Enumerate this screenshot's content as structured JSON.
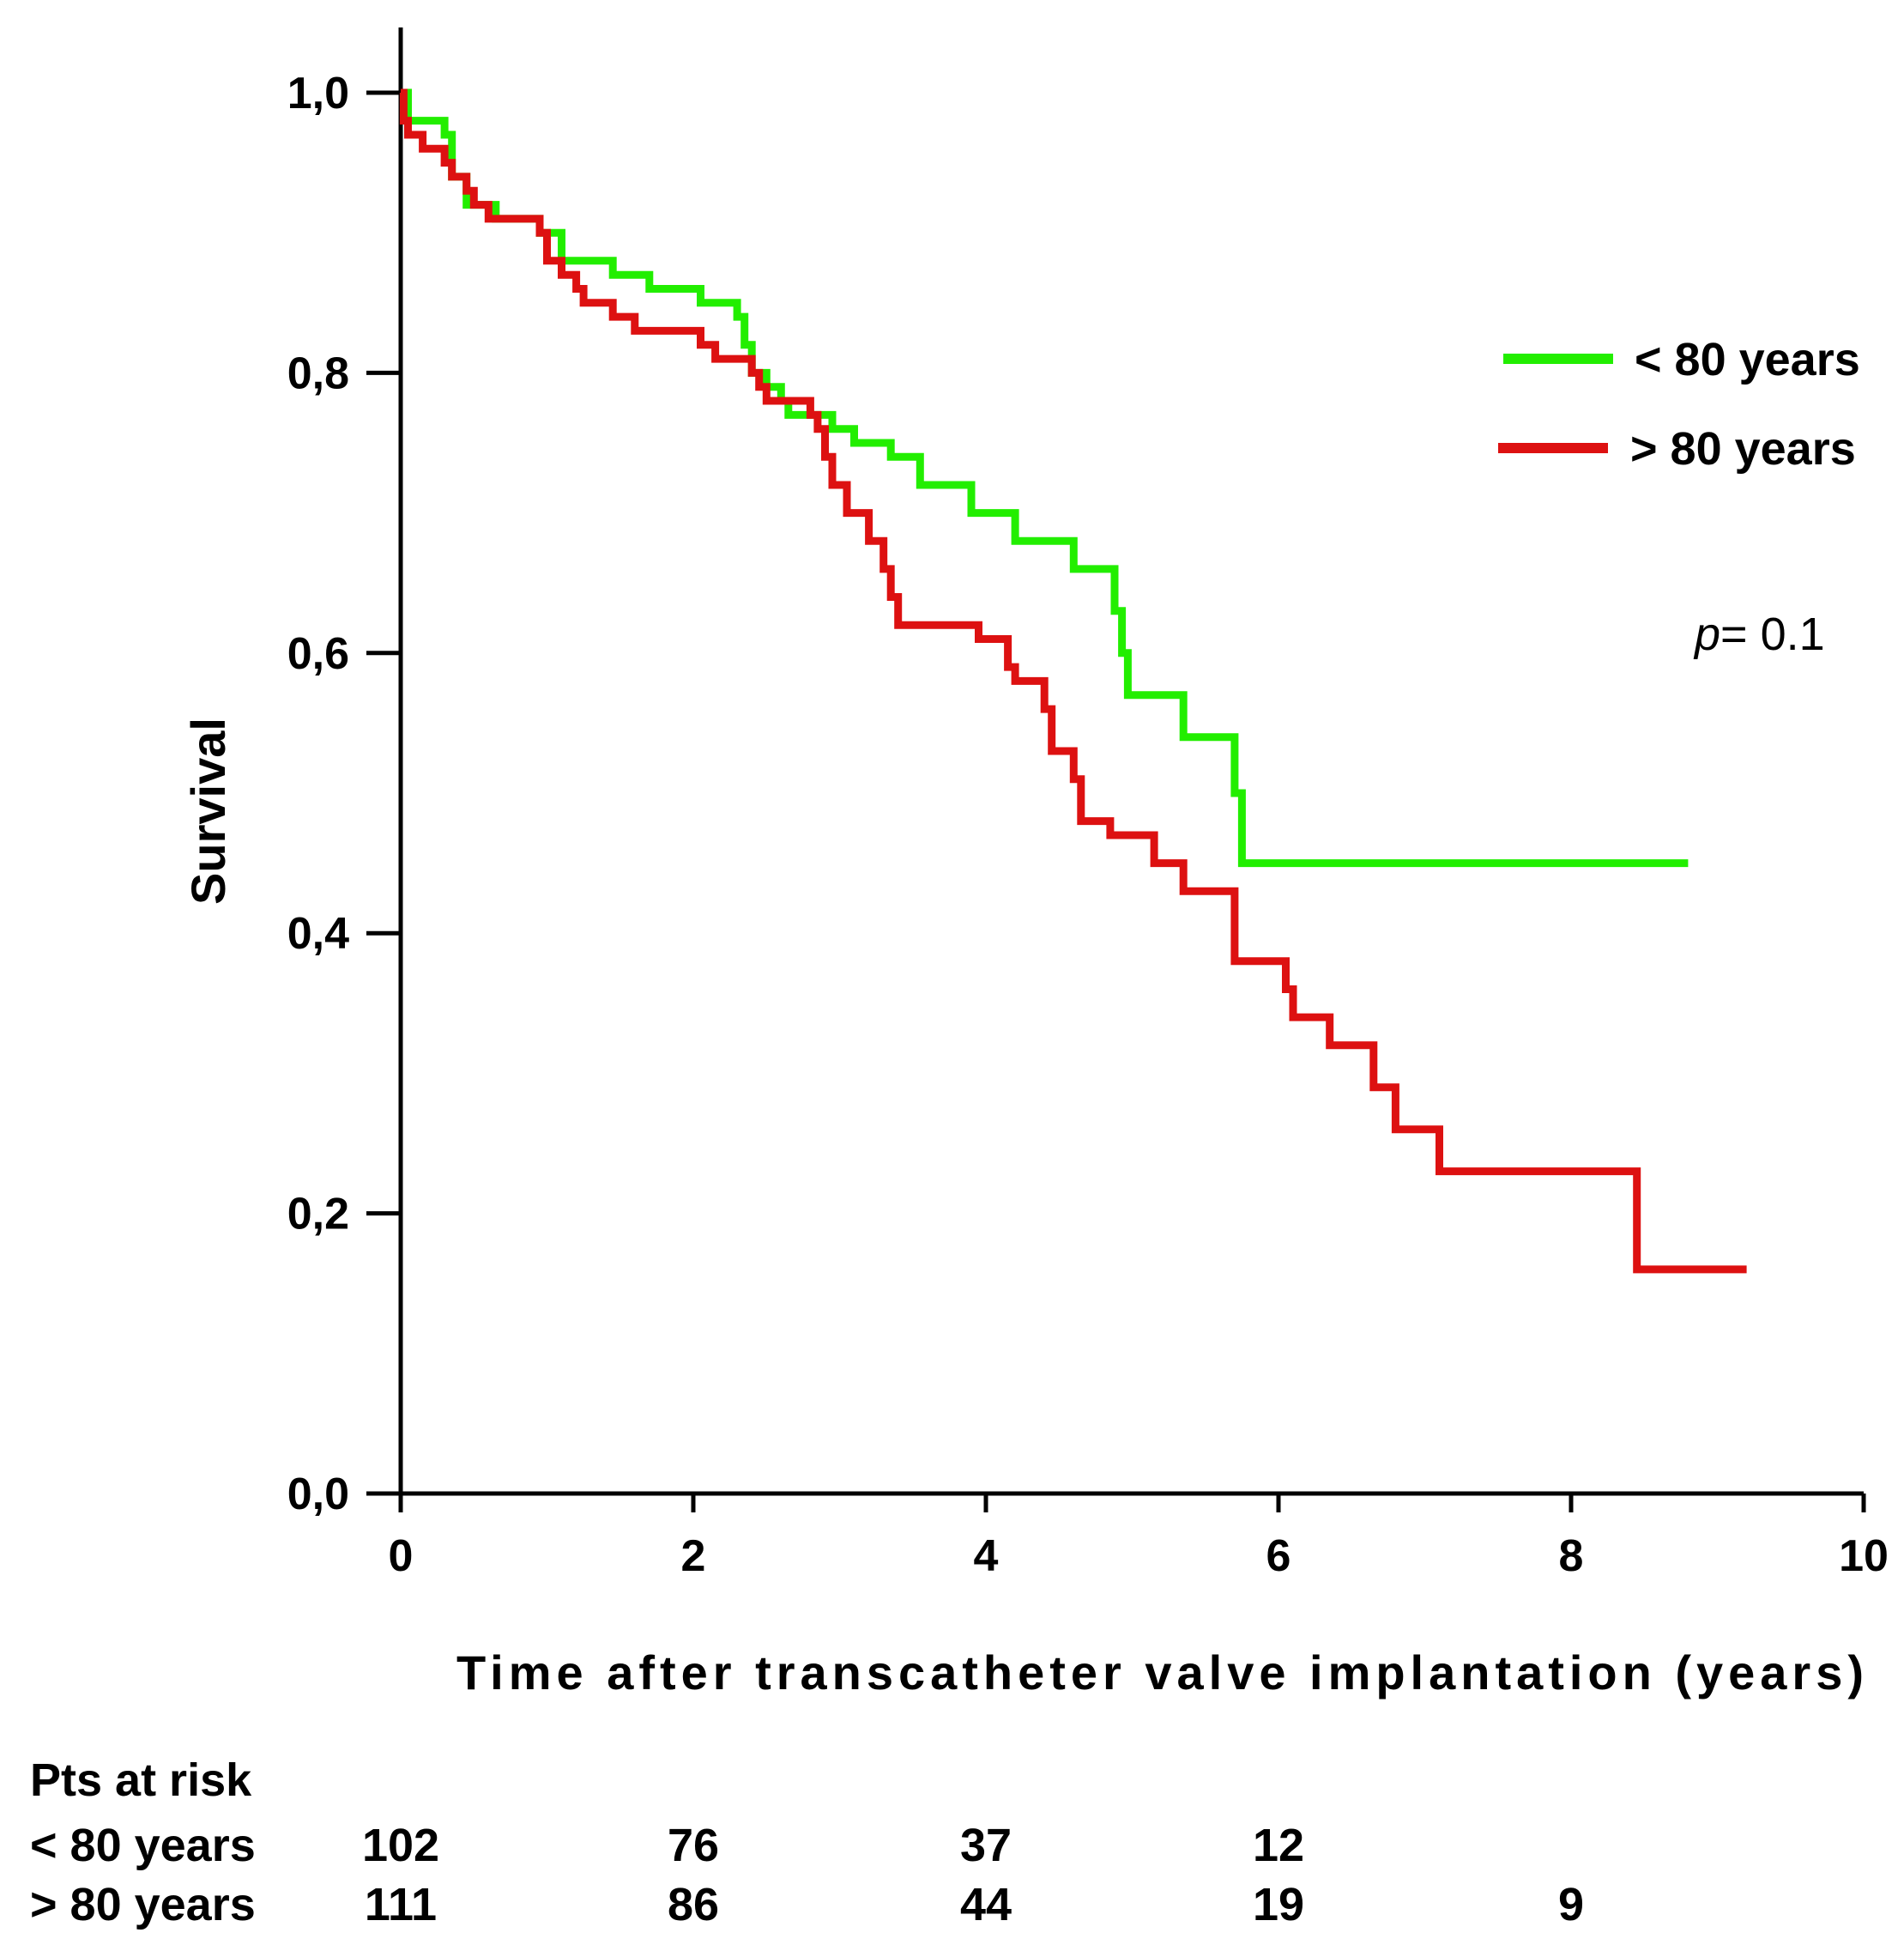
{
  "chart_data": {
    "type": "line",
    "subtype": "kaplan-meier-step",
    "title": "",
    "xlabel": "Time after transcatheter valve implantation (years)",
    "ylabel": "Survival",
    "xlim": [
      0,
      10
    ],
    "ylim": [
      0,
      1
    ],
    "x_ticks": [
      0,
      2,
      4,
      6,
      8,
      10
    ],
    "x_tick_labels": [
      "0",
      "2",
      "4",
      "6",
      "8",
      "10"
    ],
    "y_ticks": [
      0,
      0.2,
      0.4,
      0.6,
      0.8,
      1.0
    ],
    "y_tick_labels": [
      "0,0",
      "0,2",
      "0,4",
      "0,6",
      "0,8",
      "1,0"
    ],
    "grid": false,
    "legend_position": "top-right",
    "annotation": {
      "italic_part": "p",
      "rest": "= 0.1"
    },
    "series": [
      {
        "name": "< 80 years",
        "color": "#22ee00",
        "points": [
          [
            0,
            1.0
          ],
          [
            0.05,
            0.98
          ],
          [
            0.3,
            0.97
          ],
          [
            0.35,
            0.94
          ],
          [
            0.45,
            0.92
          ],
          [
            0.65,
            0.91
          ],
          [
            0.95,
            0.9
          ],
          [
            1.1,
            0.88
          ],
          [
            1.45,
            0.87
          ],
          [
            1.7,
            0.86
          ],
          [
            2.05,
            0.85
          ],
          [
            2.3,
            0.84
          ],
          [
            2.35,
            0.82
          ],
          [
            2.4,
            0.8
          ],
          [
            2.5,
            0.79
          ],
          [
            2.6,
            0.78
          ],
          [
            2.65,
            0.77
          ],
          [
            2.95,
            0.76
          ],
          [
            3.1,
            0.75
          ],
          [
            3.35,
            0.74
          ],
          [
            3.55,
            0.72
          ],
          [
            3.9,
            0.7
          ],
          [
            4.2,
            0.68
          ],
          [
            4.6,
            0.66
          ],
          [
            4.88,
            0.63
          ],
          [
            4.93,
            0.6
          ],
          [
            4.97,
            0.57
          ],
          [
            5.35,
            0.54
          ],
          [
            5.7,
            0.5
          ],
          [
            5.75,
            0.45
          ],
          [
            8.8,
            0.45
          ]
        ]
      },
      {
        "name": "> 80 years",
        "color": "#dd1111",
        "points": [
          [
            0,
            1.0
          ],
          [
            0.02,
            0.98
          ],
          [
            0.05,
            0.97
          ],
          [
            0.15,
            0.96
          ],
          [
            0.3,
            0.95
          ],
          [
            0.35,
            0.94
          ],
          [
            0.45,
            0.93
          ],
          [
            0.5,
            0.92
          ],
          [
            0.6,
            0.91
          ],
          [
            0.95,
            0.9
          ],
          [
            1.0,
            0.88
          ],
          [
            1.1,
            0.87
          ],
          [
            1.2,
            0.86
          ],
          [
            1.25,
            0.85
          ],
          [
            1.45,
            0.84
          ],
          [
            1.6,
            0.83
          ],
          [
            2.05,
            0.82
          ],
          [
            2.15,
            0.81
          ],
          [
            2.4,
            0.8
          ],
          [
            2.45,
            0.79
          ],
          [
            2.5,
            0.78
          ],
          [
            2.8,
            0.77
          ],
          [
            2.85,
            0.76
          ],
          [
            2.9,
            0.74
          ],
          [
            2.95,
            0.72
          ],
          [
            3.05,
            0.7
          ],
          [
            3.2,
            0.68
          ],
          [
            3.3,
            0.66
          ],
          [
            3.35,
            0.64
          ],
          [
            3.4,
            0.62
          ],
          [
            3.95,
            0.61
          ],
          [
            4.15,
            0.59
          ],
          [
            4.2,
            0.58
          ],
          [
            4.4,
            0.56
          ],
          [
            4.45,
            0.53
          ],
          [
            4.6,
            0.51
          ],
          [
            4.65,
            0.48
          ],
          [
            4.85,
            0.47
          ],
          [
            5.15,
            0.45
          ],
          [
            5.35,
            0.43
          ],
          [
            5.7,
            0.38
          ],
          [
            6.05,
            0.36
          ],
          [
            6.1,
            0.34
          ],
          [
            6.35,
            0.32
          ],
          [
            6.65,
            0.29
          ],
          [
            6.8,
            0.26
          ],
          [
            7.1,
            0.23
          ],
          [
            8.45,
            0.16
          ],
          [
            9.2,
            0.16
          ]
        ]
      }
    ],
    "risk_table": {
      "title": "Pts at risk",
      "times": [
        0,
        2,
        4,
        6,
        8
      ],
      "rows": [
        {
          "label": "< 80 years",
          "values": [
            "102",
            "76",
            "37",
            "12",
            ""
          ]
        },
        {
          "label": "> 80 years",
          "values": [
            "111",
            "86",
            "44",
            "19",
            "9"
          ]
        }
      ]
    }
  }
}
